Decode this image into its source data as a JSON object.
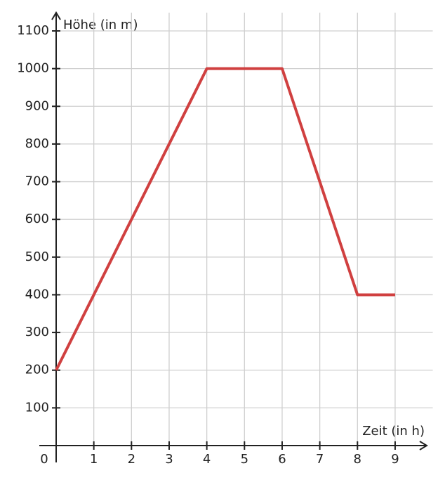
{
  "chart_data": {
    "type": "line",
    "x_label": "Zeit (in h)",
    "y_label": "Höhe (in m)",
    "x": [
      0,
      4,
      6,
      8,
      9
    ],
    "series": [
      {
        "color": "#d04040",
        "values": [
          200,
          1000,
          1000,
          400,
          400
        ]
      }
    ],
    "xlim": [
      0,
      10
    ],
    "ylim": [
      0,
      1100
    ],
    "xticks": [
      0,
      1,
      2,
      3,
      4,
      5,
      6,
      7,
      8,
      9
    ],
    "yticks": [
      100,
      200,
      300,
      400,
      500,
      600,
      700,
      800,
      900,
      1000,
      1100
    ],
    "grid": true
  }
}
